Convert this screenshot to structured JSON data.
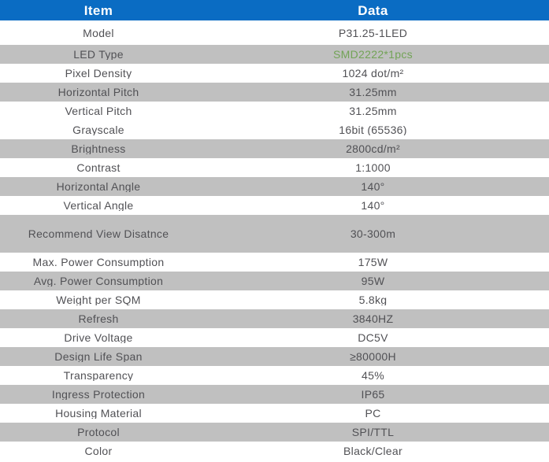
{
  "table": {
    "columns": [
      {
        "label": "Item"
      },
      {
        "label": "Data"
      }
    ],
    "rows": [
      {
        "item": "Model",
        "data": "P31.25-1LED",
        "shaded": false
      },
      {
        "item": "LED Type",
        "data": "SMD2222*1pcs",
        "shaded": true,
        "data_color": "green"
      },
      {
        "item": "Pixel Density",
        "data": "1024 dot/m²",
        "shaded": false
      },
      {
        "item": "Horizontal Pitch",
        "data": "31.25mm",
        "shaded": true
      },
      {
        "item": "Vertical Pitch",
        "data": "31.25mm",
        "shaded": false
      },
      {
        "item": "Grayscale",
        "data": "16bit (65536)",
        "shaded": false
      },
      {
        "item": "Brightness",
        "data": "2800cd/m²",
        "shaded": true
      },
      {
        "item": "Contrast",
        "data": "1:1000",
        "shaded": false
      },
      {
        "item": "Horizontal Angle",
        "data": "140°",
        "shaded": true
      },
      {
        "item": "Vertical Angle",
        "data": "140°",
        "shaded": false
      },
      {
        "item": "Recommend View Disatnce",
        "data": "30-300m",
        "shaded": true,
        "tall": true
      },
      {
        "item": "Max. Power Consumption",
        "data": "175W",
        "shaded": false
      },
      {
        "item": "Avg. Power Consumption",
        "data": "95W",
        "shaded": true
      },
      {
        "item": "Weight per SQM",
        "data": "5.8kg",
        "shaded": false
      },
      {
        "item": "Refresh",
        "data": "3840HZ",
        "shaded": true
      },
      {
        "item": "Drive Voltage",
        "data": "DC5V",
        "shaded": false
      },
      {
        "item": "Design Life Span",
        "data": "≥80000H",
        "shaded": true
      },
      {
        "item": "Transparency",
        "data": "45%",
        "shaded": false
      },
      {
        "item": "Ingress Protection",
        "data": "IP65",
        "shaded": true
      },
      {
        "item": "Housing Material",
        "data": "PC",
        "shaded": false
      },
      {
        "item": "Protocol",
        "data": "SPI/TTL",
        "shaded": true
      },
      {
        "item": "Color",
        "data": "Black/Clear",
        "shaded": false
      }
    ]
  },
  "colors": {
    "header_bg": "#0a6cc3",
    "header_text": "#ffffff",
    "row_shaded_bg": "#c0c0c0",
    "row_bg": "#ffffff",
    "text": "#515155",
    "green_value": "#72a356"
  }
}
